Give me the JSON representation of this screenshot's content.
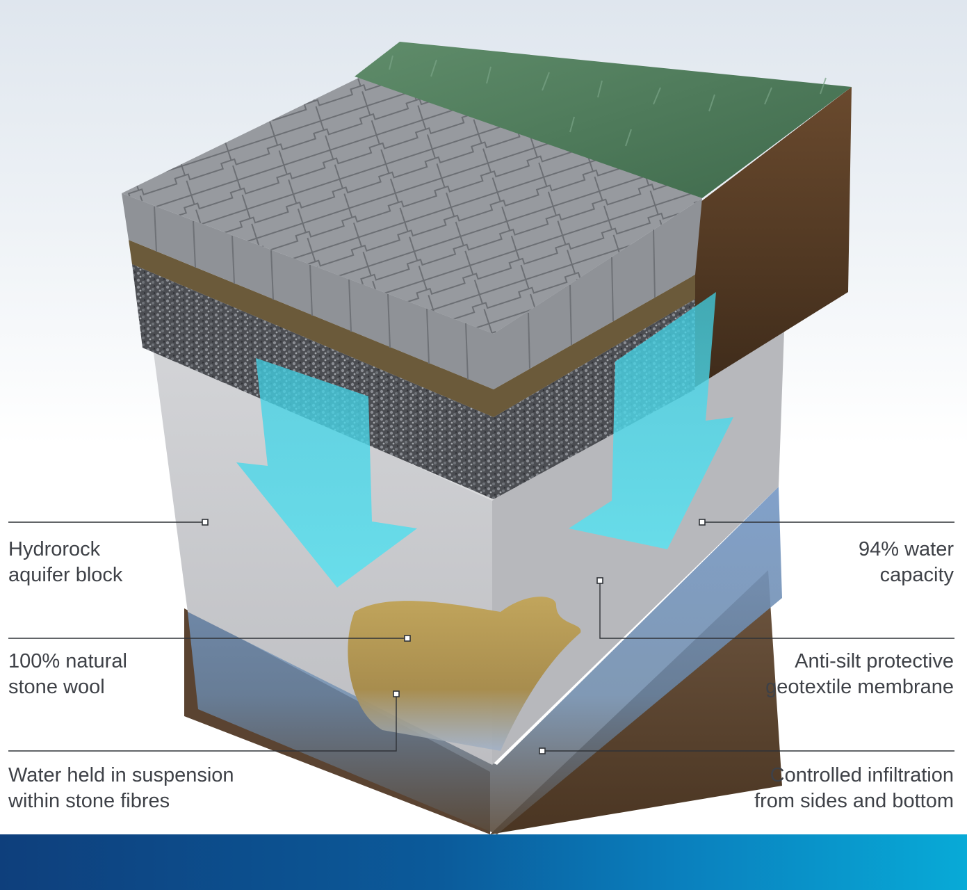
{
  "callouts": {
    "aquifer_block": [
      "Hydrorock",
      "aquifer block"
    ],
    "stone_wool": [
      "100% natural",
      "stone wool"
    ],
    "water_suspension": [
      "Water held in suspension",
      "within stone fibres"
    ],
    "water_capacity": [
      "94% water",
      "capacity"
    ],
    "membrane": [
      "Anti-silt protective",
      "geotextile membrane"
    ],
    "infiltration": [
      "Controlled infiltration",
      "from sides and bottom"
    ]
  },
  "icons": {
    "flow_arrows": "water-flow-arrow-icon",
    "callout_marker": "square-marker-icon"
  },
  "colors": {
    "label_text": "#3e4147",
    "leader_line": "#2f3237",
    "water_arrow": "#4fd6e6",
    "banner_start": "#0e3f7c",
    "banner_end": "#08aad7",
    "grass": "#4f7a5a",
    "paving": "#8e9296",
    "gravel": "#55575c",
    "soil": "#5a3f28",
    "block": "#c9cacd",
    "stone_wool": "#b59a55",
    "water_zone": "#6d8fb8"
  }
}
